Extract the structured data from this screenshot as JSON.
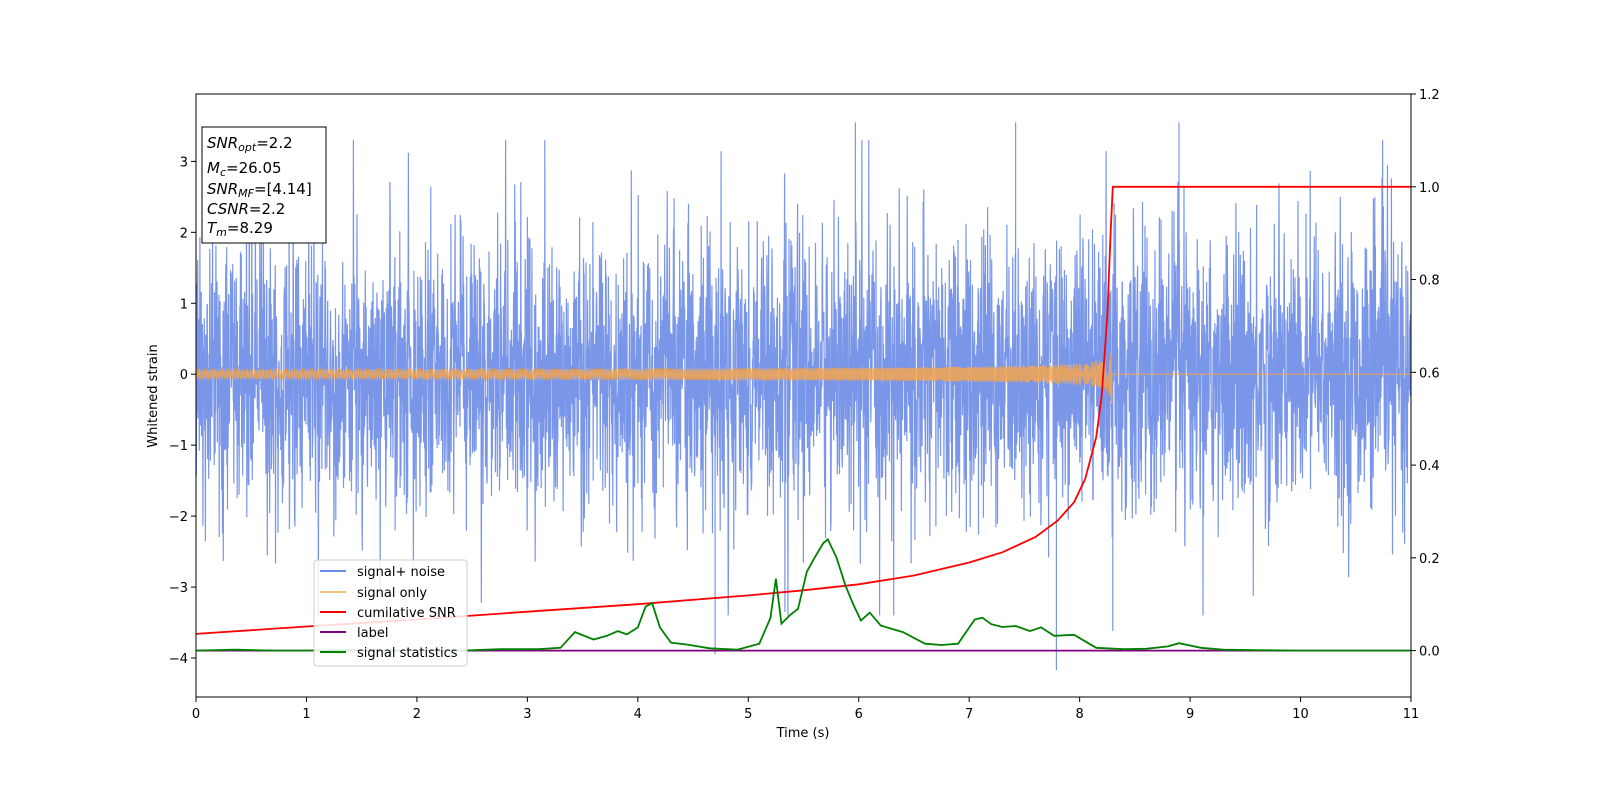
{
  "chart_data": {
    "type": "line",
    "title": "",
    "xlabel": "Time (s)",
    "ylabel": "Whitened strain",
    "xlim": [
      0,
      11
    ],
    "ylim_left": [
      -4.55,
      3.95
    ],
    "ylim_right": [
      -0.1,
      1.2
    ],
    "x_ticks": [
      0,
      1,
      2,
      3,
      4,
      5,
      6,
      7,
      8,
      9,
      10,
      11
    ],
    "y_ticks_left": [
      -4,
      -3,
      -2,
      -1,
      0,
      1,
      2,
      3
    ],
    "y_tick_labels_left": [
      "−4",
      "−3",
      "−2",
      "−1",
      "0",
      "1",
      "2",
      "3"
    ],
    "y_ticks_right": [
      0.0,
      0.2,
      0.4,
      0.6,
      0.8,
      1.0,
      1.2
    ],
    "y_tick_labels_right": [
      "0.0",
      "0.2",
      "0.4",
      "0.6",
      "0.8",
      "1.0",
      "1.2"
    ],
    "grid": false,
    "legend_position": "lower-left",
    "info_box": {
      "snr_opt": {
        "sym": "SNR",
        "sub": "opt",
        "val": "=2.2"
      },
      "mc": {
        "sym": "M",
        "sub": "c",
        "val": "=26.05"
      },
      "snr_mf": {
        "sym": "SNR",
        "sub": "MF",
        "val": "=[4.14]"
      },
      "csnr": {
        "sym": "CSNR",
        "val": "=2.2"
      },
      "tm": {
        "sym": "T",
        "sub": "m",
        "val": "=8.29"
      }
    },
    "series": [
      {
        "name": "signal+ noise",
        "axis": "left",
        "color": "#6b8be6",
        "description_values": {
          "typical_amplitude_range": [
            -2.0,
            2.0
          ],
          "peak_max": 3.6,
          "peak_min": -4.2,
          "dip_at_x": [
            7.79,
            4.7,
            8.3
          ]
        },
        "extrema": [
          {
            "x": 5.97,
            "y": 3.55
          },
          {
            "x": 7.42,
            "y": 3.55
          },
          {
            "x": 8.9,
            "y": 3.55
          },
          {
            "x": 7.79,
            "y": -4.17
          },
          {
            "x": 4.7,
            "y": -3.95
          },
          {
            "x": 8.3,
            "y": -3.62
          }
        ]
      },
      {
        "name": "signal only",
        "axis": "left",
        "color": "#f5a64f",
        "chirp": {
          "t_merge": 8.29,
          "amp_at_merge": 0.45,
          "start": 0
        }
      },
      {
        "name": "cumilative SNR",
        "axis": "right",
        "color": "#ff0000",
        "x": [
          0,
          1,
          2,
          3,
          4,
          5,
          5.5,
          6,
          6.5,
          7,
          7.3,
          7.6,
          7.8,
          7.95,
          8.05,
          8.15,
          8.2,
          8.25,
          8.28,
          8.3,
          11
        ],
        "values": [
          0.036,
          0.052,
          0.067,
          0.084,
          0.1,
          0.119,
          0.13,
          0.143,
          0.162,
          0.19,
          0.212,
          0.245,
          0.28,
          0.32,
          0.37,
          0.46,
          0.55,
          0.72,
          0.9,
          1.0,
          1.0
        ]
      },
      {
        "name": "label",
        "axis": "right",
        "color": "#800080",
        "x": [
          0,
          11
        ],
        "values": [
          0.0,
          0.0
        ]
      },
      {
        "name": "signal statistics",
        "axis": "right",
        "color": "#008000",
        "x": [
          0,
          0.35,
          0.7,
          1.0,
          1.3,
          1.6,
          2.0,
          2.4,
          2.75,
          3.1,
          3.3,
          3.43,
          3.6,
          3.72,
          3.82,
          3.9,
          4.0,
          4.07,
          4.13,
          4.2,
          4.3,
          4.45,
          4.65,
          4.9,
          5.1,
          5.2,
          5.25,
          5.3,
          5.38,
          5.45,
          5.53,
          5.6,
          5.68,
          5.72,
          5.8,
          5.88,
          5.95,
          6.02,
          6.1,
          6.2,
          6.4,
          6.6,
          6.75,
          6.9,
          7.05,
          7.12,
          7.2,
          7.3,
          7.42,
          7.55,
          7.65,
          7.77,
          7.95,
          8.15,
          8.4,
          8.6,
          8.8,
          8.9,
          9.1,
          9.3,
          9.6,
          10.0,
          11.0
        ],
        "values": [
          0.0,
          0.002,
          0.0,
          0.0,
          0.001,
          0.0,
          0.0,
          0.0,
          0.003,
          0.003,
          0.006,
          0.04,
          0.024,
          0.032,
          0.042,
          0.035,
          0.05,
          0.095,
          0.102,
          0.05,
          0.017,
          0.013,
          0.005,
          0.002,
          0.015,
          0.07,
          0.155,
          0.058,
          0.077,
          0.09,
          0.17,
          0.2,
          0.232,
          0.24,
          0.2,
          0.14,
          0.1,
          0.065,
          0.082,
          0.054,
          0.04,
          0.015,
          0.012,
          0.015,
          0.067,
          0.071,
          0.057,
          0.051,
          0.053,
          0.042,
          0.05,
          0.032,
          0.034,
          0.006,
          0.003,
          0.004,
          0.009,
          0.016,
          0.006,
          0.002,
          0.001,
          0.0,
          0.0
        ]
      }
    ]
  }
}
